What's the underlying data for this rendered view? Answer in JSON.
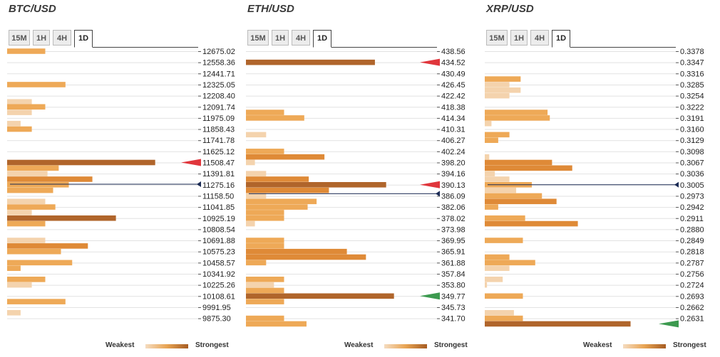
{
  "legend": {
    "weak": "Weakest",
    "strong": "Strongest"
  },
  "colors": {
    "gridline": "#e2e2e2",
    "price": "#1b2b55",
    "red": "#e0363c",
    "green": "#3c9a4f"
  },
  "chart_data": [
    {
      "type": "bar",
      "title": "BTC/USD",
      "tabs": [
        "15M",
        "1H",
        "4H",
        "1D"
      ],
      "active_tab": "1D",
      "price_levels": [
        "12675.02",
        "12558.36",
        "12441.71",
        "12325.05",
        "12208.40",
        "12091.74",
        "11975.09",
        "11858.43",
        "11741.78",
        "11625.12",
        "11508.47",
        "11391.81",
        "11275.16",
        "11158.50",
        "11041.85",
        "10925.19",
        "10808.54",
        "10691.88",
        "10575.23",
        "10458.57",
        "10341.92",
        "10225.26",
        "10108.61",
        "9991.95",
        "9875.30"
      ],
      "max_strength": 15,
      "bars": [
        {
          "level": 0,
          "val": 3.4,
          "shade": 1
        },
        {
          "level": 3,
          "val": 5.2,
          "shade": 1
        },
        {
          "level": 4.55,
          "val": 2.2,
          "shade": 0
        },
        {
          "level": 5,
          "val": 3.4,
          "shade": 1
        },
        {
          "level": 5.5,
          "val": 2.2,
          "shade": 0
        },
        {
          "level": 6.5,
          "val": 1.2,
          "shade": 0
        },
        {
          "level": 7,
          "val": 2.2,
          "shade": 1
        },
        {
          "level": 10,
          "val": 13.2,
          "shade": 3
        },
        {
          "level": 10.5,
          "val": 4.6,
          "shade": 1
        },
        {
          "level": 11,
          "val": 3.6,
          "shade": 0
        },
        {
          "level": 11.5,
          "val": 7.6,
          "shade": 2
        },
        {
          "level": 12,
          "val": 5.5,
          "shade": 1
        },
        {
          "level": 12.5,
          "val": 4.1,
          "shade": 1
        },
        {
          "level": 13.5,
          "val": 3.4,
          "shade": 0
        },
        {
          "level": 14,
          "val": 4.3,
          "shade": 1
        },
        {
          "level": 14.5,
          "val": 2.2,
          "shade": 0
        },
        {
          "level": 15,
          "val": 9.7,
          "shade": 3
        },
        {
          "level": 15.5,
          "val": 3.4,
          "shade": 1
        },
        {
          "level": 17,
          "val": 3.4,
          "shade": 0
        },
        {
          "level": 17.5,
          "val": 7.2,
          "shade": 2
        },
        {
          "level": 18,
          "val": 4.8,
          "shade": 1
        },
        {
          "level": 19,
          "val": 5.8,
          "shade": 1
        },
        {
          "level": 19.5,
          "val": 1.2,
          "shade": 1
        },
        {
          "level": 20.5,
          "val": 3.4,
          "shade": 1
        },
        {
          "level": 21,
          "val": 2.2,
          "shade": 0
        },
        {
          "level": 22.5,
          "val": 5.2,
          "shade": 1
        },
        {
          "level": 23.5,
          "val": 1.2,
          "shade": 0
        }
      ],
      "current_price_level": 11.95,
      "markers": [
        {
          "level": 10,
          "color": "red"
        }
      ]
    },
    {
      "type": "bar",
      "title": "ETH/USD",
      "tabs": [
        "15M",
        "1H",
        "4H",
        "1D"
      ],
      "active_tab": "1D",
      "price_levels": [
        "438.56",
        "434.52",
        "430.49",
        "426.45",
        "422.42",
        "418.38",
        "414.34",
        "410.31",
        "406.27",
        "402.24",
        "398.20",
        "394.16",
        "390.13",
        "386.09",
        "382.06",
        "378.02",
        "373.98",
        "369.95",
        "365.91",
        "361.88",
        "357.84",
        "353.80",
        "349.77",
        "345.73",
        "341.70"
      ],
      "max_strength": 15,
      "bars": [
        {
          "level": 1,
          "val": 11.5,
          "shade": 3
        },
        {
          "level": 5.5,
          "val": 3.4,
          "shade": 1
        },
        {
          "level": 6,
          "val": 5.2,
          "shade": 1
        },
        {
          "level": 7.5,
          "val": 1.8,
          "shade": 0
        },
        {
          "level": 9,
          "val": 3.4,
          "shade": 1
        },
        {
          "level": 9.5,
          "val": 7.0,
          "shade": 2
        },
        {
          "level": 10,
          "val": 0.8,
          "shade": 0
        },
        {
          "level": 11,
          "val": 1.8,
          "shade": 0
        },
        {
          "level": 11.5,
          "val": 5.6,
          "shade": 2
        },
        {
          "level": 12,
          "val": 12.5,
          "shade": 3
        },
        {
          "level": 12.5,
          "val": 7.4,
          "shade": 2
        },
        {
          "level": 13,
          "val": 1.8,
          "shade": 0
        },
        {
          "level": 13.5,
          "val": 6.3,
          "shade": 1
        },
        {
          "level": 14,
          "val": 5.5,
          "shade": 1
        },
        {
          "level": 14.5,
          "val": 3.4,
          "shade": 1
        },
        {
          "level": 15,
          "val": 3.4,
          "shade": 1
        },
        {
          "level": 15.5,
          "val": 0.8,
          "shade": 0
        },
        {
          "level": 17,
          "val": 3.4,
          "shade": 1
        },
        {
          "level": 17.5,
          "val": 3.4,
          "shade": 1
        },
        {
          "level": 18,
          "val": 9.0,
          "shade": 2
        },
        {
          "level": 18.5,
          "val": 10.7,
          "shade": 2
        },
        {
          "level": 19,
          "val": 1.8,
          "shade": 1
        },
        {
          "level": 20.5,
          "val": 3.4,
          "shade": 1
        },
        {
          "level": 21,
          "val": 2.5,
          "shade": 0
        },
        {
          "level": 21.5,
          "val": 3.4,
          "shade": 1
        },
        {
          "level": 22,
          "val": 13.2,
          "shade": 3
        },
        {
          "level": 22.5,
          "val": 3.4,
          "shade": 1
        },
        {
          "level": 24,
          "val": 3.4,
          "shade": 1
        },
        {
          "level": 24.5,
          "val": 5.4,
          "shade": 1
        }
      ],
      "current_price_level": 12.8,
      "markers": [
        {
          "level": 1,
          "color": "red"
        },
        {
          "level": 12,
          "color": "red"
        },
        {
          "level": 22,
          "color": "green"
        }
      ]
    },
    {
      "type": "bar",
      "title": "XRP/USD",
      "tabs": [
        "15M",
        "1H",
        "4H",
        "1D"
      ],
      "active_tab": "1D",
      "price_levels": [
        "0.3378",
        "0.3347",
        "0.3316",
        "0.3285",
        "0.3254",
        "0.3222",
        "0.3191",
        "0.3160",
        "0.3129",
        "0.3098",
        "0.3067",
        "0.3036",
        "0.3005",
        "0.2973",
        "0.2942",
        "0.2911",
        "0.2880",
        "0.2849",
        "0.2818",
        "0.2787",
        "0.2756",
        "0.2724",
        "0.2693",
        "0.2662",
        "0.2631"
      ],
      "max_strength": 15,
      "bars": [
        {
          "level": 2.5,
          "val": 3.2,
          "shade": 1
        },
        {
          "level": 3,
          "val": 2.2,
          "shade": 0
        },
        {
          "level": 3.5,
          "val": 3.2,
          "shade": 0
        },
        {
          "level": 4,
          "val": 2.2,
          "shade": 0
        },
        {
          "level": 5.5,
          "val": 5.6,
          "shade": 1
        },
        {
          "level": 6,
          "val": 5.8,
          "shade": 1
        },
        {
          "level": 6.5,
          "val": 0.6,
          "shade": 0
        },
        {
          "level": 7.5,
          "val": 2.2,
          "shade": 1
        },
        {
          "level": 8,
          "val": 1.2,
          "shade": 1
        },
        {
          "level": 9.5,
          "val": 0.4,
          "shade": 0
        },
        {
          "level": 10,
          "val": 6.0,
          "shade": 2
        },
        {
          "level": 10.5,
          "val": 7.8,
          "shade": 2
        },
        {
          "level": 11,
          "val": 0.9,
          "shade": 0
        },
        {
          "level": 11.5,
          "val": 2.2,
          "shade": 0
        },
        {
          "level": 12,
          "val": 4.2,
          "shade": 1
        },
        {
          "level": 12.5,
          "val": 2.8,
          "shade": 0
        },
        {
          "level": 13,
          "val": 5.1,
          "shade": 1
        },
        {
          "level": 13.5,
          "val": 6.4,
          "shade": 2
        },
        {
          "level": 14,
          "val": 1.2,
          "shade": 1
        },
        {
          "level": 15,
          "val": 3.6,
          "shade": 1
        },
        {
          "level": 15.5,
          "val": 8.3,
          "shade": 2
        },
        {
          "level": 17,
          "val": 3.4,
          "shade": 1
        },
        {
          "level": 18.5,
          "val": 2.2,
          "shade": 1
        },
        {
          "level": 19,
          "val": 4.5,
          "shade": 1
        },
        {
          "level": 19.5,
          "val": 2.2,
          "shade": 0
        },
        {
          "level": 20.5,
          "val": 1.6,
          "shade": 0
        },
        {
          "level": 21,
          "val": 0.2,
          "shade": 0
        },
        {
          "level": 22,
          "val": 3.4,
          "shade": 1
        },
        {
          "level": 23.5,
          "val": 2.6,
          "shade": 0
        },
        {
          "level": 24,
          "val": 3.4,
          "shade": 1
        },
        {
          "level": 24.5,
          "val": 13.0,
          "shade": 3
        }
      ],
      "current_price_level": 12.0,
      "markers": [
        {
          "level": 24.5,
          "color": "green"
        }
      ]
    }
  ]
}
